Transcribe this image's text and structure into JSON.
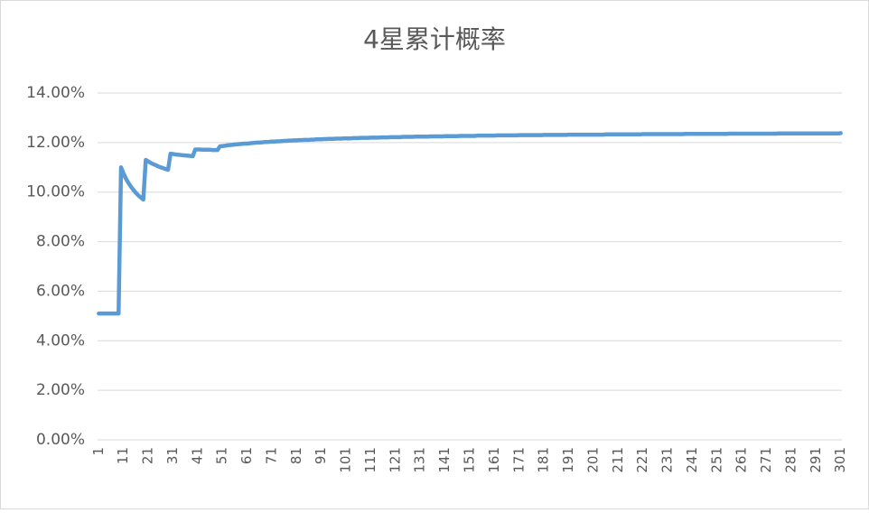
{
  "chart_data": {
    "type": "line",
    "title": "4星累计概率",
    "color": "#5b9bd5",
    "categories": [
      1,
      null,
      null,
      null,
      null,
      null,
      null,
      null,
      null,
      null,
      11,
      null,
      null,
      null,
      null,
      null,
      null,
      null,
      null,
      null,
      21,
      null,
      null,
      null,
      null,
      null,
      null,
      null,
      null,
      null,
      31,
      null,
      null,
      null,
      null,
      null,
      null,
      null,
      null,
      null,
      41,
      null,
      null,
      null,
      null,
      null,
      null,
      null,
      null,
      null,
      51,
      null,
      null,
      null,
      null,
      null,
      null,
      null,
      null,
      null,
      61,
      null,
      null,
      null,
      null,
      null,
      null,
      null,
      null,
      null,
      71,
      null,
      null,
      null,
      null,
      null,
      null,
      null,
      null,
      null,
      81,
      null,
      null,
      null,
      null,
      null,
      null,
      null,
      null,
      null,
      91,
      null,
      null,
      null,
      null,
      null,
      null,
      null,
      null,
      null,
      101,
      null,
      null,
      null,
      null,
      null,
      null,
      null,
      null,
      null,
      111,
      null,
      null,
      null,
      null,
      null,
      null,
      null,
      null,
      null,
      121,
      null,
      null,
      null,
      null,
      null,
      null,
      null,
      null,
      null,
      131,
      null,
      null,
      null,
      null,
      null,
      null,
      null,
      null,
      null,
      141,
      null,
      null,
      null,
      null,
      null,
      null,
      null,
      null,
      null,
      151,
      null,
      null,
      null,
      null,
      null,
      null,
      null,
      null,
      null,
      161,
      null,
      null,
      null,
      null,
      null,
      null,
      null,
      null,
      null,
      171,
      null,
      null,
      null,
      null,
      null,
      null,
      null,
      null,
      null,
      181,
      null,
      null,
      null,
      null,
      null,
      null,
      null,
      null,
      null,
      191,
      null,
      null,
      null,
      null,
      null,
      null,
      null,
      null,
      null,
      201,
      null,
      null,
      null,
      null,
      null,
      null,
      null,
      null,
      null,
      211,
      null,
      null,
      null,
      null,
      null,
      null,
      null,
      null,
      null,
      221,
      null,
      null,
      null,
      null,
      null,
      null,
      null,
      null,
      null,
      231,
      null,
      null,
      null,
      null,
      null,
      null,
      null,
      null,
      null,
      241,
      null,
      null,
      null,
      null,
      null,
      null,
      null,
      null,
      null,
      251,
      null,
      null,
      null,
      null,
      null,
      null,
      null,
      null,
      null,
      261,
      null,
      null,
      null,
      null,
      null,
      null,
      null,
      null,
      null,
      271,
      null,
      null,
      null,
      null,
      null,
      null,
      null,
      null,
      null,
      281,
      null,
      null,
      null,
      null,
      null,
      null,
      null,
      null,
      null,
      291,
      null,
      null,
      null,
      null,
      null,
      null,
      null,
      null,
      null,
      301
    ],
    "values": [
      5.1,
      5.1,
      5.1,
      5.1,
      5.1,
      5.1,
      5.1,
      5.1,
      5.1,
      11.0,
      10.75,
      10.54,
      10.37,
      10.22,
      10.09,
      9.97,
      9.87,
      9.78,
      9.7,
      11.3,
      11.24,
      11.18,
      11.13,
      11.09,
      11.04,
      11.0,
      10.97,
      10.93,
      10.9,
      11.55,
      11.54,
      11.52,
      11.51,
      11.5,
      11.49,
      11.48,
      11.47,
      11.46,
      11.45,
      11.72,
      11.72,
      11.72,
      11.71,
      11.71,
      11.71,
      11.71,
      11.7,
      11.7,
      11.7,
      11.85,
      11.86,
      11.87,
      11.89,
      11.9,
      11.91,
      11.92,
      11.93,
      11.94,
      11.95,
      11.96,
      11.96,
      11.97,
      11.98,
      11.99,
      12.0,
      12.0,
      12.01,
      12.02,
      12.02,
      12.03,
      12.04,
      12.04,
      12.05,
      12.05,
      12.06,
      12.07,
      12.07,
      12.08,
      12.08,
      12.09,
      12.09,
      12.1,
      12.1,
      12.11,
      12.11,
      12.11,
      12.12,
      12.12,
      12.13,
      12.13,
      12.13,
      12.14,
      12.14,
      12.15,
      12.15,
      12.15,
      12.16,
      12.16,
      12.16,
      12.17,
      12.17,
      12.17,
      12.17,
      12.18,
      12.18,
      12.18,
      12.19,
      12.19,
      12.19,
      12.19,
      12.2,
      12.2,
      12.2,
      12.2,
      12.21,
      12.21,
      12.21,
      12.21,
      12.22,
      12.22,
      12.22,
      12.22,
      12.22,
      12.23,
      12.23,
      12.23,
      12.23,
      12.23,
      12.24,
      12.24,
      12.24,
      12.24,
      12.24,
      12.24,
      12.25,
      12.25,
      12.25,
      12.25,
      12.25,
      12.25,
      12.26,
      12.26,
      12.26,
      12.26,
      12.26,
      12.26,
      12.27,
      12.27,
      12.27,
      12.27,
      12.27,
      12.27,
      12.27,
      12.28,
      12.28,
      12.28,
      12.28,
      12.28,
      12.28,
      12.28,
      12.28,
      12.29,
      12.29,
      12.29,
      12.29,
      12.29,
      12.29,
      12.29,
      12.29,
      12.29,
      12.3,
      12.3,
      12.3,
      12.3,
      12.3,
      12.3,
      12.3,
      12.3,
      12.3,
      12.3,
      12.31,
      12.31,
      12.31,
      12.31,
      12.31,
      12.31,
      12.31,
      12.31,
      12.31,
      12.31,
      12.32,
      12.32,
      12.32,
      12.32,
      12.32,
      12.32,
      12.32,
      12.32,
      12.32,
      12.32,
      12.32,
      12.32,
      12.32,
      12.32,
      12.32,
      12.33,
      12.33,
      12.33,
      12.33,
      12.33,
      12.33,
      12.33,
      12.33,
      12.33,
      12.33,
      12.33,
      12.33,
      12.33,
      12.33,
      12.33,
      12.34,
      12.34,
      12.34,
      12.34,
      12.34,
      12.34,
      12.34,
      12.34,
      12.34,
      12.34,
      12.34,
      12.34,
      12.34,
      12.34,
      12.34,
      12.34,
      12.34,
      12.35,
      12.35,
      12.35,
      12.35,
      12.35,
      12.35,
      12.35,
      12.35,
      12.35,
      12.35,
      12.35,
      12.35,
      12.35,
      12.35,
      12.35,
      12.35,
      12.35,
      12.35,
      12.36,
      12.36,
      12.36,
      12.36,
      12.36,
      12.36,
      12.36,
      12.36,
      12.36,
      12.36,
      12.36,
      12.36,
      12.36,
      12.36,
      12.36,
      12.36,
      12.36,
      12.36,
      12.36,
      12.36,
      12.37,
      12.37,
      12.37,
      12.37,
      12.37,
      12.37,
      12.37,
      12.37,
      12.37,
      12.37,
      12.37,
      12.37,
      12.37,
      12.37,
      12.37,
      12.37,
      12.37,
      12.37,
      12.37,
      12.37,
      12.37,
      12.37,
      12.37,
      12.37,
      12.37,
      12.38
    ],
    "ylim": [
      0,
      14
    ],
    "yticks": [
      {
        "value": 0,
        "label": "0.00%"
      },
      {
        "value": 2,
        "label": "2.00%"
      },
      {
        "value": 4,
        "label": "4.00%"
      },
      {
        "value": 6,
        "label": "6.00%"
      },
      {
        "value": 8,
        "label": "8.00%"
      },
      {
        "value": 10,
        "label": "10.00%"
      },
      {
        "value": 12,
        "label": "12.00%"
      },
      {
        "value": 14,
        "label": "14.00%"
      }
    ],
    "grid": true
  }
}
